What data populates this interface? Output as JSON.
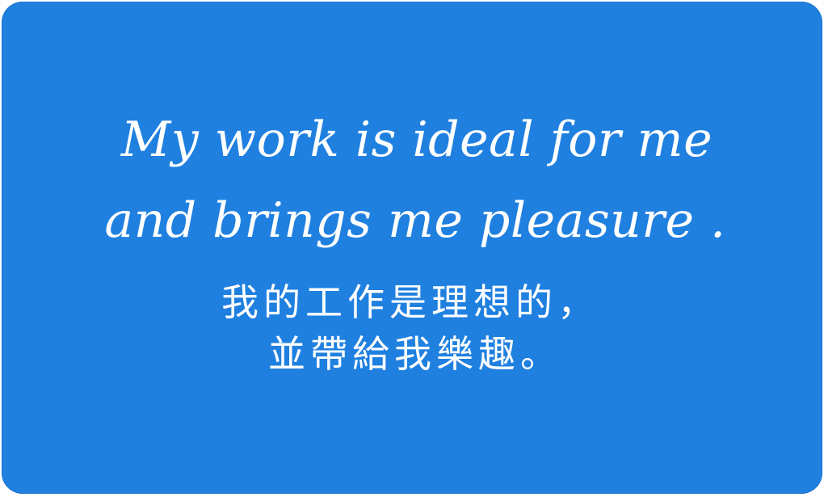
{
  "card": {
    "background_color": "#1f80e0",
    "text_color": "#ffffff",
    "english_line_1": "My work is ideal for me",
    "english_line_2": "and brings me pleasure .",
    "chinese_line_1": "我的工作是理想的，",
    "chinese_line_2": "並帶給我樂趣。"
  }
}
